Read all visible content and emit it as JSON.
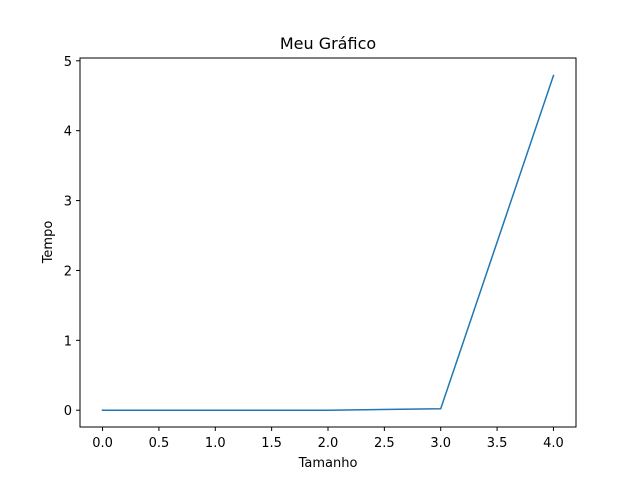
{
  "chart_data": {
    "type": "line",
    "title": "Meu Gráfico",
    "xlabel": "Tamanho",
    "ylabel": "Tempo",
    "xlim": [
      -0.2,
      4.2
    ],
    "ylim": [
      -0.24,
      5.04
    ],
    "x_ticks": [
      0.0,
      0.5,
      1.0,
      1.5,
      2.0,
      2.5,
      3.0,
      3.5,
      4.0
    ],
    "x_tick_labels": [
      "0.0",
      "0.5",
      "1.0",
      "1.5",
      "2.0",
      "2.5",
      "3.0",
      "3.5",
      "4.0"
    ],
    "y_ticks": [
      0,
      1,
      2,
      3,
      4,
      5
    ],
    "y_tick_labels": [
      "0",
      "1",
      "2",
      "3",
      "4",
      "5"
    ],
    "grid": false,
    "series": [
      {
        "color": "#1f77b4",
        "x": [
          0,
          1,
          2,
          3,
          4
        ],
        "y": [
          0.0,
          0.0,
          0.0,
          0.02,
          4.79
        ]
      }
    ]
  }
}
